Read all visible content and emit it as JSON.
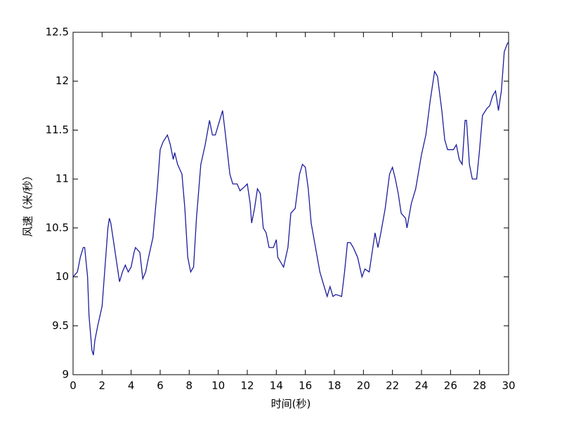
{
  "chart_data": {
    "type": "line",
    "xlabel": "时间(秒)",
    "ylabel": "风速（米/秒）",
    "x": [
      0,
      0.3,
      0.5,
      0.7,
      0.8,
      1.0,
      1.1,
      1.3,
      1.4,
      1.5,
      1.7,
      2.0,
      2.2,
      2.4,
      2.5,
      2.6,
      2.8,
      3.0,
      3.2,
      3.4,
      3.6,
      3.8,
      4.0,
      4.2,
      4.3,
      4.6,
      4.8,
      5.0,
      5.2,
      5.5,
      5.8,
      6.0,
      6.2,
      6.5,
      6.7,
      6.9,
      7.0,
      7.2,
      7.5,
      7.7,
      7.9,
      8.1,
      8.3,
      8.5,
      8.8,
      9.1,
      9.4,
      9.6,
      9.8,
      10.0,
      10.3,
      10.5,
      10.8,
      11.0,
      11.3,
      11.5,
      11.8,
      12.0,
      12.2,
      12.3,
      12.5,
      12.7,
      12.9,
      13.1,
      13.3,
      13.5,
      13.8,
      14.0,
      14.1,
      14.3,
      14.5,
      14.8,
      15.0,
      15.3,
      15.6,
      15.8,
      16.0,
      16.2,
      16.4,
      16.7,
      17.0,
      17.3,
      17.5,
      17.7,
      17.9,
      18.1,
      18.5,
      18.7,
      18.9,
      19.1,
      19.3,
      19.6,
      19.9,
      20.1,
      20.4,
      20.6,
      20.8,
      21.0,
      21.2,
      21.5,
      21.8,
      22.0,
      22.2,
      22.4,
      22.6,
      22.9,
      23.0,
      23.3,
      23.6,
      24.0,
      24.3,
      24.6,
      24.9,
      25.1,
      25.4,
      25.6,
      25.8,
      26.2,
      26.4,
      26.6,
      26.8,
      27.0,
      27.1,
      27.3,
      27.5,
      27.8,
      28.0,
      28.2,
      28.5,
      28.7,
      28.9,
      29.1,
      29.3,
      29.5,
      29.7,
      29.9,
      30.0
    ],
    "values": [
      10.0,
      10.05,
      10.2,
      10.3,
      10.3,
      10.0,
      9.6,
      9.25,
      9.2,
      9.35,
      9.5,
      9.7,
      10.1,
      10.5,
      10.6,
      10.55,
      10.35,
      10.15,
      9.95,
      10.05,
      10.12,
      10.05,
      10.1,
      10.25,
      10.3,
      10.25,
      9.98,
      10.05,
      10.2,
      10.4,
      10.9,
      11.3,
      11.38,
      11.45,
      11.35,
      11.2,
      11.27,
      11.15,
      11.05,
      10.7,
      10.2,
      10.05,
      10.1,
      10.6,
      11.15,
      11.35,
      11.6,
      11.45,
      11.45,
      11.55,
      11.7,
      11.45,
      11.05,
      10.95,
      10.95,
      10.88,
      10.92,
      10.95,
      10.75,
      10.55,
      10.7,
      10.9,
      10.85,
      10.5,
      10.45,
      10.3,
      10.3,
      10.38,
      10.2,
      10.15,
      10.1,
      10.3,
      10.65,
      10.7,
      11.05,
      11.15,
      11.12,
      10.9,
      10.55,
      10.3,
      10.05,
      9.9,
      9.8,
      9.9,
      9.8,
      9.82,
      9.8,
      10.05,
      10.35,
      10.35,
      10.3,
      10.2,
      10.0,
      10.08,
      10.05,
      10.25,
      10.45,
      10.3,
      10.45,
      10.7,
      11.05,
      11.12,
      11.0,
      10.85,
      10.65,
      10.6,
      10.5,
      10.75,
      10.9,
      11.25,
      11.45,
      11.8,
      12.1,
      12.05,
      11.7,
      11.4,
      11.3,
      11.3,
      11.35,
      11.2,
      11.15,
      11.6,
      11.6,
      11.15,
      11.0,
      11.0,
      11.3,
      11.65,
      11.72,
      11.75,
      11.85,
      11.9,
      11.7,
      11.9,
      12.3,
      12.38,
      12.4
    ],
    "color": "#1c1c9c",
    "xlim": [
      0,
      30
    ],
    "xticks": [
      0,
      2,
      4,
      6,
      8,
      10,
      12,
      14,
      16,
      18,
      20,
      22,
      24,
      26,
      28,
      30
    ],
    "ylim": [
      9,
      12.5
    ],
    "yticks": [
      9,
      9.5,
      10,
      10.5,
      11,
      11.5,
      12,
      12.5
    ]
  }
}
